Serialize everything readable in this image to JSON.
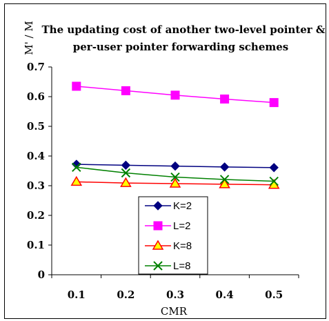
{
  "chart_data": {
    "type": "line",
    "title_line1": "The updating cost of another two-level pointer &",
    "title_line2": "per-user pointer forwarding schemes",
    "xlabel": "CMR",
    "ylabel": "M' / M",
    "x": [
      0.1,
      0.2,
      0.3,
      0.4,
      0.5
    ],
    "x_tick_labels": [
      "0.1",
      "0.2",
      "0.3",
      "0.4",
      "0.5"
    ],
    "ylim": [
      0,
      0.7
    ],
    "y_tick_labels": [
      "0",
      "0.1",
      "0.2",
      "0.3",
      "0.4",
      "0.5",
      "0.6",
      "0.7"
    ],
    "legend_position": "bottom-center",
    "series": [
      {
        "name": "K=2",
        "values": [
          0.372,
          0.369,
          0.366,
          0.363,
          0.361
        ],
        "color": "#000080",
        "marker": "diamond"
      },
      {
        "name": "L=2",
        "values": [
          0.635,
          0.62,
          0.605,
          0.592,
          0.58
        ],
        "color": "#ff00ff",
        "marker": "square"
      },
      {
        "name": "K=8",
        "values": [
          0.313,
          0.309,
          0.307,
          0.305,
          0.303
        ],
        "color": "#ff0000",
        "marker": "triangle"
      },
      {
        "name": "L=8",
        "values": [
          0.362,
          0.343,
          0.329,
          0.321,
          0.315
        ],
        "color": "#008000",
        "marker": "x"
      }
    ]
  }
}
